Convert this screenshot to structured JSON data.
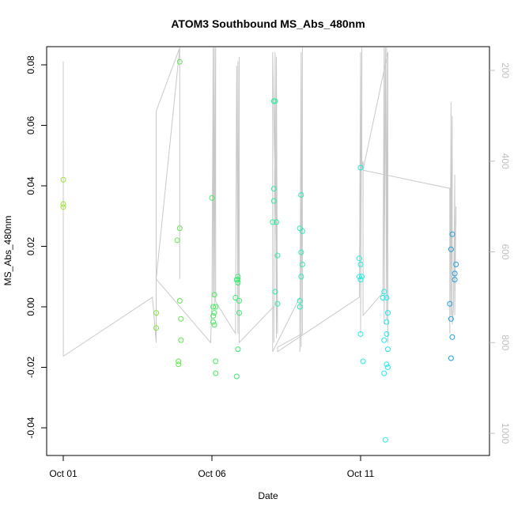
{
  "chart_data": {
    "type": "scatter",
    "title": "ATOM3 Southbound MS_Abs_480nm",
    "xlabel": "Date",
    "ylabel": "MS_Abs_480nm",
    "xlim": [
      "2016-10-01 00:00",
      "2016-10-15 00:00"
    ],
    "ylim": [
      -0.048,
      0.086
    ],
    "x_ticks": [
      {
        "value": "2016-10-01 00:00",
        "label": "Oct 01"
      },
      {
        "value": "2016-10-06 00:00",
        "label": "Oct 06"
      },
      {
        "value": "2016-10-11 00:00",
        "label": "Oct 11"
      }
    ],
    "y_ticks": [
      -0.04,
      -0.02,
      0.0,
      0.02,
      0.04,
      0.06,
      0.08
    ],
    "y_tick_labels": [
      "-0.04",
      "-0.02",
      "0.00",
      "0.02",
      "0.04",
      "0.06",
      "0.08"
    ],
    "right_axis": {
      "ylim": [
        1045,
        155
      ],
      "ticks": [
        200,
        400,
        600,
        800,
        1000
      ],
      "tick_labels": [
        "200",
        "400",
        "600",
        "800",
        "1000"
      ],
      "color": "#bfbfbf"
    },
    "grid": false,
    "points": [
      {
        "x": "2016-10-01 00:05",
        "y": 0.042,
        "color": "#99e62e"
      },
      {
        "x": "2016-10-01 00:00",
        "y": 0.034,
        "color": "#99e62e"
      },
      {
        "x": "2016-10-01 00:00",
        "y": 0.033,
        "color": "#99e62e"
      },
      {
        "x": "2016-10-04 03:00",
        "y": -0.002,
        "color": "#7de63a"
      },
      {
        "x": "2016-10-04 03:00",
        "y": -0.007,
        "color": "#7de63a"
      },
      {
        "x": "2016-10-04 20:00",
        "y": 0.022,
        "color": "#5ee84a"
      },
      {
        "x": "2016-10-04 22:00",
        "y": 0.081,
        "color": "#5ee84a"
      },
      {
        "x": "2016-10-04 22:00",
        "y": 0.026,
        "color": "#5ee84a"
      },
      {
        "x": "2016-10-04 22:00",
        "y": 0.002,
        "color": "#5ee84a"
      },
      {
        "x": "2016-10-04 23:00",
        "y": -0.004,
        "color": "#5ee84a"
      },
      {
        "x": "2016-10-04 23:00",
        "y": -0.011,
        "color": "#5ee84a"
      },
      {
        "x": "2016-10-04 21:00",
        "y": -0.018,
        "color": "#5ee84a"
      },
      {
        "x": "2016-10-04 21:00",
        "y": -0.019,
        "color": "#5ee84a"
      },
      {
        "x": "2016-10-06 00:00",
        "y": 0.036,
        "color": "#46ea5e"
      },
      {
        "x": "2016-10-06 02:00",
        "y": 0.004,
        "color": "#46ea5e"
      },
      {
        "x": "2016-10-06 01:00",
        "y": 0.0,
        "color": "#46ea5e"
      },
      {
        "x": "2016-10-06 03:00",
        "y": 0.0,
        "color": "#46ea5e"
      },
      {
        "x": "2016-10-06 02:00",
        "y": -0.002,
        "color": "#46ea5e"
      },
      {
        "x": "2016-10-06 01:00",
        "y": -0.003,
        "color": "#46ea5e"
      },
      {
        "x": "2016-10-06 01:00",
        "y": -0.005,
        "color": "#46ea5e"
      },
      {
        "x": "2016-10-06 02:00",
        "y": -0.006,
        "color": "#46ea5e"
      },
      {
        "x": "2016-10-06 03:00",
        "y": -0.018,
        "color": "#46ea5e"
      },
      {
        "x": "2016-10-06 03:00",
        "y": -0.022,
        "color": "#46ea5e"
      },
      {
        "x": "2016-10-06 20:00",
        "y": 0.009,
        "color": "#3aeb70"
      },
      {
        "x": "2016-10-06 21:00",
        "y": 0.01,
        "color": "#3aeb70"
      },
      {
        "x": "2016-10-06 21:00",
        "y": 0.008,
        "color": "#3aeb70"
      },
      {
        "x": "2016-10-06 21:00",
        "y": 0.009,
        "color": "#3aeb70"
      },
      {
        "x": "2016-10-06 19:00",
        "y": 0.003,
        "color": "#3aeb70"
      },
      {
        "x": "2016-10-06 22:00",
        "y": 0.002,
        "color": "#3aeb70"
      },
      {
        "x": "2016-10-06 22:00",
        "y": -0.002,
        "color": "#3aeb70"
      },
      {
        "x": "2016-10-06 21:00",
        "y": -0.014,
        "color": "#3aeb70"
      },
      {
        "x": "2016-10-06 20:00",
        "y": -0.023,
        "color": "#3aeb70"
      },
      {
        "x": "2016-10-08 02:00",
        "y": 0.068,
        "color": "#30eca0"
      },
      {
        "x": "2016-10-08 03:00",
        "y": 0.068,
        "color": "#30eca0"
      },
      {
        "x": "2016-10-08 02:00",
        "y": 0.039,
        "color": "#30eca0"
      },
      {
        "x": "2016-10-08 02:00",
        "y": 0.035,
        "color": "#30eca0"
      },
      {
        "x": "2016-10-08 01:00",
        "y": 0.028,
        "color": "#30eca0"
      },
      {
        "x": "2016-10-08 04:00",
        "y": 0.028,
        "color": "#30eca0"
      },
      {
        "x": "2016-10-08 05:00",
        "y": 0.017,
        "color": "#30eca0"
      },
      {
        "x": "2016-10-08 03:00",
        "y": 0.005,
        "color": "#30eca0"
      },
      {
        "x": "2016-10-08 05:00",
        "y": 0.001,
        "color": "#30eca0"
      },
      {
        "x": "2016-10-09 00:00",
        "y": 0.037,
        "color": "#2aedb8"
      },
      {
        "x": "2016-10-08 23:00",
        "y": 0.026,
        "color": "#2aedb8"
      },
      {
        "x": "2016-10-09 01:00",
        "y": 0.025,
        "color": "#2aedb8"
      },
      {
        "x": "2016-10-09 00:00",
        "y": 0.018,
        "color": "#2aedb8"
      },
      {
        "x": "2016-10-09 01:00",
        "y": 0.014,
        "color": "#2aedb8"
      },
      {
        "x": "2016-10-09 00:00",
        "y": 0.01,
        "color": "#2aedb8"
      },
      {
        "x": "2016-10-08 23:00",
        "y": 0.002,
        "color": "#2aedb8"
      },
      {
        "x": "2016-10-08 23:00",
        "y": 0.0,
        "color": "#2aedb8"
      },
      {
        "x": "2016-10-11 00:00",
        "y": 0.046,
        "color": "#22eee0"
      },
      {
        "x": "2016-10-10 23:00",
        "y": 0.016,
        "color": "#22eee0"
      },
      {
        "x": "2016-10-11 00:00",
        "y": 0.014,
        "color": "#22eee0"
      },
      {
        "x": "2016-10-10 23:00",
        "y": 0.01,
        "color": "#22eee0"
      },
      {
        "x": "2016-10-11 01:00",
        "y": 0.01,
        "color": "#22eee0"
      },
      {
        "x": "2016-10-11 00:00",
        "y": 0.009,
        "color": "#22eee0"
      },
      {
        "x": "2016-10-11 00:00",
        "y": -0.009,
        "color": "#22eee0"
      },
      {
        "x": "2016-10-11 02:00",
        "y": -0.018,
        "color": "#22eee0"
      },
      {
        "x": "2016-10-11 19:00",
        "y": 0.005,
        "color": "#20e8f0"
      },
      {
        "x": "2016-10-11 18:00",
        "y": 0.003,
        "color": "#20e8f0"
      },
      {
        "x": "2016-10-11 21:00",
        "y": 0.003,
        "color": "#20e8f0"
      },
      {
        "x": "2016-10-11 22:00",
        "y": -0.002,
        "color": "#20e8f0"
      },
      {
        "x": "2016-10-11 21:00",
        "y": -0.005,
        "color": "#20e8f0"
      },
      {
        "x": "2016-10-11 21:00",
        "y": -0.009,
        "color": "#20e8f0"
      },
      {
        "x": "2016-10-11 19:00",
        "y": -0.011,
        "color": "#20e8f0"
      },
      {
        "x": "2016-10-11 22:00",
        "y": -0.014,
        "color": "#20e8f0"
      },
      {
        "x": "2016-10-11 21:00",
        "y": -0.019,
        "color": "#20e8f0"
      },
      {
        "x": "2016-10-11 22:00",
        "y": -0.02,
        "color": "#20e8f0"
      },
      {
        "x": "2016-10-11 19:00",
        "y": -0.022,
        "color": "#20e8f0"
      },
      {
        "x": "2016-10-11 20:00",
        "y": -0.044,
        "color": "#20e8f0"
      },
      {
        "x": "2016-10-14 02:00",
        "y": 0.024,
        "color": "#1e9ee0"
      },
      {
        "x": "2016-10-14 01:00",
        "y": 0.019,
        "color": "#1e9ee0"
      },
      {
        "x": "2016-10-14 05:00",
        "y": 0.014,
        "color": "#1e9ee0"
      },
      {
        "x": "2016-10-14 04:00",
        "y": 0.011,
        "color": "#1e9ee0"
      },
      {
        "x": "2016-10-14 04:00",
        "y": 0.009,
        "color": "#1e9ee0"
      },
      {
        "x": "2016-10-14 00:00",
        "y": 0.001,
        "color": "#1e9ee0"
      },
      {
        "x": "2016-10-14 01:00",
        "y": -0.004,
        "color": "#1e9ee0"
      },
      {
        "x": "2016-10-14 02:00",
        "y": -0.01,
        "color": "#1e9ee0"
      },
      {
        "x": "2016-10-14 01:00",
        "y": -0.017,
        "color": "#1e9ee0"
      }
    ],
    "depth_line": {
      "color": "#c8c8c8",
      "x": [
        "2016-10-01 00:00",
        "2016-10-01 00:00",
        "2016-10-01 00:00",
        "2016-10-01 00:00",
        "2016-10-01 00:00",
        "2016-10-01 00:05",
        "2016-10-04 00:00",
        "2016-10-04 03:00",
        "2016-10-04 03:00",
        "2016-10-04 22:00",
        "2016-10-04 22:00",
        "2016-10-04 22:00",
        "2016-10-04 22:00",
        "2016-10-04 22:00",
        "2016-10-04 03:00",
        "2016-10-04 03:00",
        "2016-10-05 23:00",
        "2016-10-06 00:00",
        "2016-10-06 01:00",
        "2016-10-06 01:00",
        "2016-10-06 02:00",
        "2016-10-06 02:00",
        "2016-10-06 03:00",
        "2016-10-06 03:00",
        "2016-10-06 19:00",
        "2016-10-06 20:00",
        "2016-10-06 21:00",
        "2016-10-06 21:00",
        "2016-10-06 22:00",
        "2016-10-06 22:00",
        "2016-10-06 22:00",
        "2016-10-06 22:00",
        "2016-10-08 02:00",
        "2016-10-08 02:00",
        "2016-10-08 03:00",
        "2016-10-08 04:00",
        "2016-10-08 04:00",
        "2016-10-08 05:00",
        "2016-10-08 01:00",
        "2016-10-08 01:00",
        "2016-10-08 23:00",
        "2016-10-08 23:00",
        "2016-10-09 00:00",
        "2016-10-09 00:00",
        "2016-10-09 01:00",
        "2016-10-09 01:00",
        "2016-10-08 05:00",
        "2016-10-08 05:00",
        "2016-10-10 23:00",
        "2016-10-11 00:00",
        "2016-10-11 00:00",
        "2016-10-11 01:00",
        "2016-10-11 01:00",
        "2016-10-11 02:00",
        "2016-10-11 02:00",
        "2016-10-11 18:00",
        "2016-10-11 19:00",
        "2016-10-11 19:00",
        "2016-10-11 20:00",
        "2016-10-11 21:00",
        "2016-10-11 21:00",
        "2016-10-11 22:00",
        "2016-10-11 22:00",
        "2016-10-11 02:00",
        "2016-10-14 00:00",
        "2016-10-14 00:00",
        "2016-10-14 01:00",
        "2016-10-14 01:00",
        "2016-10-14 02:00",
        "2016-10-14 02:00",
        "2016-10-14 03:00",
        "2016-10-14 04:00",
        "2016-10-14 04:00",
        "2016-10-14 05:00",
        "2016-10-14 05:00"
      ],
      "y": [
        250,
        320,
        180,
        330,
        270,
        830,
        700,
        800,
        660,
        150,
        660,
        150,
        650,
        150,
        290,
        660,
        800,
        710,
        150,
        700,
        150,
        720,
        150,
        710,
        780,
        190,
        780,
        180,
        790,
        170,
        790,
        800,
        720,
        800,
        160,
        790,
        170,
        780,
        160,
        820,
        700,
        820,
        160,
        810,
        150,
        780,
        810,
        820,
        700,
        160,
        780,
        150,
        420,
        400,
        740,
        690,
        150,
        760,
        150,
        750,
        150,
        800,
        160,
        420,
        460,
        780,
        270,
        740,
        300,
        760,
        720,
        430,
        740,
        500,
        540
      ]
    }
  }
}
